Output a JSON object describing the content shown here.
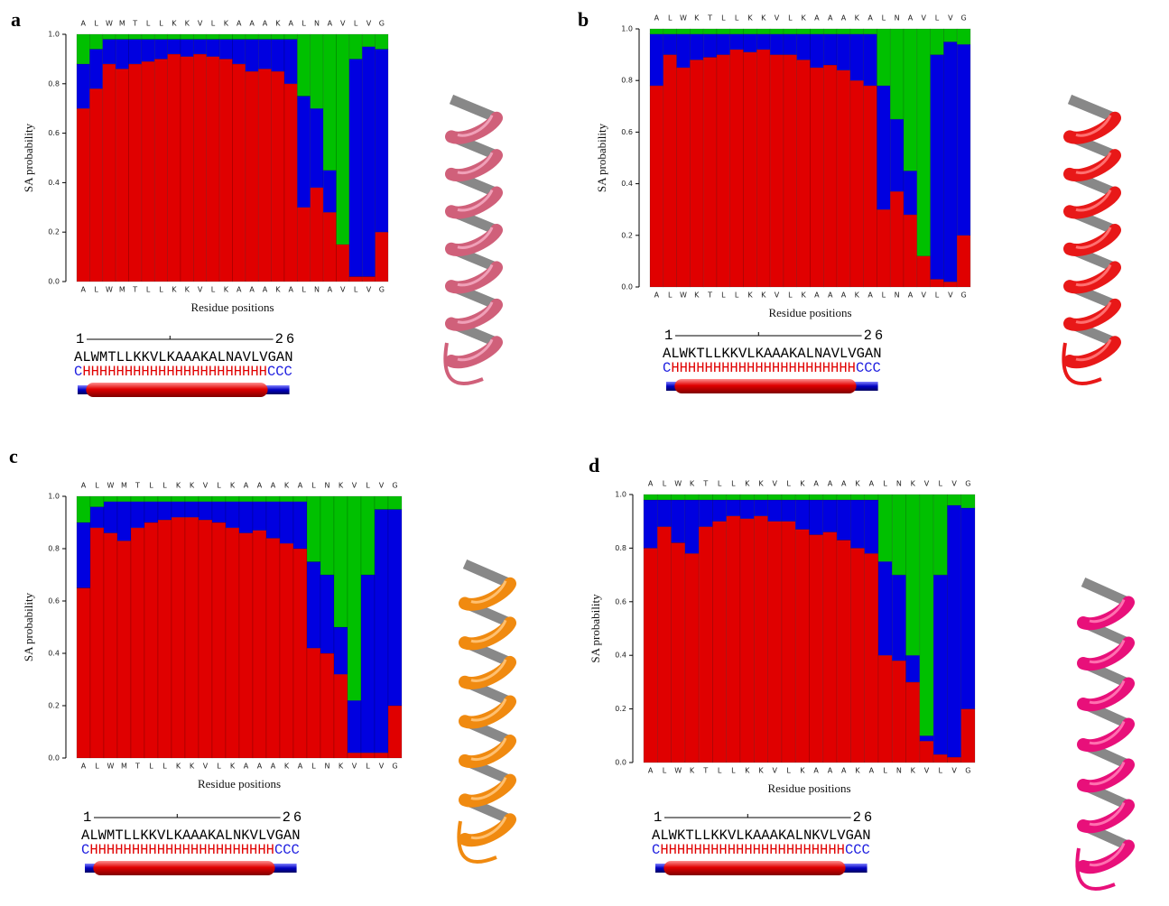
{
  "chart_data": [
    {
      "type": "bar",
      "stacked": true,
      "panel_label": "a",
      "ylabel": "SA probability",
      "xlabel": "Residue positions",
      "categories": [
        "A",
        "L",
        "W",
        "M",
        "T",
        "L",
        "L",
        "K",
        "K",
        "V",
        "L",
        "K",
        "A",
        "A",
        "A",
        "K",
        "A",
        "L",
        "N",
        "A",
        "V",
        "L",
        "V",
        "G"
      ],
      "series": [
        {
          "color": "#e00000",
          "values": [
            0.7,
            0.78,
            0.88,
            0.86,
            0.88,
            0.89,
            0.9,
            0.92,
            0.91,
            0.92,
            0.91,
            0.9,
            0.88,
            0.85,
            0.86,
            0.85,
            0.8,
            0.3,
            0.38,
            0.28,
            0.15,
            0.02,
            0.02,
            0.2
          ]
        },
        {
          "color": "#0000e0",
          "values": [
            0.18,
            0.16,
            0.1,
            0.12,
            0.1,
            0.09,
            0.08,
            0.06,
            0.07,
            0.06,
            0.07,
            0.08,
            0.1,
            0.13,
            0.12,
            0.13,
            0.18,
            0.45,
            0.32,
            0.17,
            0.0,
            0.88,
            0.93,
            0.74
          ]
        },
        {
          "color": "#00c000",
          "values": [
            0.12,
            0.06,
            0.02,
            0.02,
            0.02,
            0.02,
            0.02,
            0.02,
            0.02,
            0.02,
            0.02,
            0.02,
            0.02,
            0.02,
            0.02,
            0.02,
            0.02,
            0.25,
            0.3,
            0.55,
            0.85,
            0.1,
            0.05,
            0.06
          ]
        }
      ],
      "ylim": [
        0,
        1
      ],
      "yticks": [
        {
          "value": 0,
          "label": "0.0"
        },
        {
          "value": 0.2,
          "label": "0.2"
        },
        {
          "value": 0.4,
          "label": "0.4"
        },
        {
          "value": 0.6,
          "label": "0.6"
        },
        {
          "value": 0.8,
          "label": "0.8"
        },
        {
          "value": 1,
          "label": "1.0"
        }
      ],
      "sequence_start": "1",
      "sequence_end": "26",
      "sequence": "ALWMTLLKKVLKAAAKALNAVLVGAN",
      "secondary_structure": [
        "C",
        "HHHHHHHHHHHHHHHHHHHHHH",
        "CCC"
      ]
    },
    {
      "type": "bar",
      "stacked": true,
      "panel_label": "b",
      "ylabel": "SA probability",
      "xlabel": "Residue positions",
      "categories": [
        "A",
        "L",
        "W",
        "K",
        "T",
        "L",
        "L",
        "K",
        "K",
        "V",
        "L",
        "K",
        "A",
        "A",
        "A",
        "K",
        "A",
        "L",
        "N",
        "A",
        "V",
        "L",
        "V",
        "G"
      ],
      "series": [
        {
          "color": "#e00000",
          "values": [
            0.78,
            0.9,
            0.85,
            0.88,
            0.89,
            0.9,
            0.92,
            0.91,
            0.92,
            0.9,
            0.9,
            0.88,
            0.85,
            0.86,
            0.84,
            0.8,
            0.78,
            0.3,
            0.37,
            0.28,
            0.12,
            0.03,
            0.02,
            0.2
          ]
        },
        {
          "color": "#0000e0",
          "values": [
            0.2,
            0.08,
            0.13,
            0.1,
            0.09,
            0.08,
            0.06,
            0.07,
            0.06,
            0.08,
            0.08,
            0.1,
            0.13,
            0.12,
            0.14,
            0.18,
            0.2,
            0.48,
            0.28,
            0.17,
            0.0,
            0.87,
            0.93,
            0.74
          ]
        },
        {
          "color": "#00c000",
          "values": [
            0.02,
            0.02,
            0.02,
            0.02,
            0.02,
            0.02,
            0.02,
            0.02,
            0.02,
            0.02,
            0.02,
            0.02,
            0.02,
            0.02,
            0.02,
            0.02,
            0.02,
            0.22,
            0.35,
            0.55,
            0.88,
            0.1,
            0.05,
            0.06
          ]
        }
      ],
      "ylim": [
        0,
        1
      ],
      "yticks": [
        {
          "value": 0,
          "label": "0.0"
        },
        {
          "value": 0.2,
          "label": "0.2"
        },
        {
          "value": 0.4,
          "label": "0.4"
        },
        {
          "value": 0.6,
          "label": "0.6"
        },
        {
          "value": 0.8,
          "label": "0.8"
        },
        {
          "value": 1,
          "label": "1.0"
        }
      ],
      "sequence_start": "1",
      "sequence_end": "26",
      "sequence": "ALWKTLLKKVLKAAAKALNAVLVGAN",
      "secondary_structure": [
        "C",
        "HHHHHHHHHHHHHHHHHHHHHH",
        "CCC"
      ]
    },
    {
      "type": "bar",
      "stacked": true,
      "panel_label": "c",
      "ylabel": "SA probability",
      "xlabel": "Residue positions",
      "categories": [
        "A",
        "L",
        "W",
        "M",
        "T",
        "L",
        "L",
        "K",
        "K",
        "V",
        "L",
        "K",
        "A",
        "A",
        "A",
        "K",
        "A",
        "L",
        "N",
        "K",
        "V",
        "L",
        "V",
        "G"
      ],
      "series": [
        {
          "color": "#e00000",
          "values": [
            0.65,
            0.88,
            0.86,
            0.83,
            0.88,
            0.9,
            0.91,
            0.92,
            0.92,
            0.91,
            0.9,
            0.88,
            0.86,
            0.87,
            0.84,
            0.82,
            0.8,
            0.42,
            0.4,
            0.32,
            0.02,
            0.02,
            0.02,
            0.2
          ]
        },
        {
          "color": "#0000e0",
          "values": [
            0.25,
            0.08,
            0.12,
            0.15,
            0.1,
            0.08,
            0.07,
            0.06,
            0.06,
            0.07,
            0.08,
            0.1,
            0.12,
            0.11,
            0.14,
            0.16,
            0.18,
            0.33,
            0.3,
            0.18,
            0.2,
            0.68,
            0.93,
            0.75
          ]
        },
        {
          "color": "#00c000",
          "values": [
            0.1,
            0.04,
            0.02,
            0.02,
            0.02,
            0.02,
            0.02,
            0.02,
            0.02,
            0.02,
            0.02,
            0.02,
            0.02,
            0.02,
            0.02,
            0.02,
            0.02,
            0.25,
            0.3,
            0.5,
            0.78,
            0.3,
            0.05,
            0.05
          ]
        }
      ],
      "ylim": [
        0,
        1
      ],
      "yticks": [
        {
          "value": 0,
          "label": "0.0"
        },
        {
          "value": 0.2,
          "label": "0.2"
        },
        {
          "value": 0.4,
          "label": "0.4"
        },
        {
          "value": 0.6,
          "label": "0.6"
        },
        {
          "value": 0.8,
          "label": "0.8"
        },
        {
          "value": 1,
          "label": "1.0"
        }
      ],
      "sequence_start": "1",
      "sequence_end": "26",
      "sequence": "ALWMTLLKKVLKAAAKALNKVLVGAN",
      "secondary_structure": [
        "C",
        "HHHHHHHHHHHHHHHHHHHHHH",
        "CCC"
      ]
    },
    {
      "type": "bar",
      "stacked": true,
      "panel_label": "d",
      "ylabel": "SA probability",
      "xlabel": "Residue positions",
      "categories": [
        "A",
        "L",
        "W",
        "K",
        "T",
        "L",
        "L",
        "K",
        "K",
        "V",
        "L",
        "K",
        "A",
        "A",
        "A",
        "K",
        "A",
        "L",
        "N",
        "K",
        "V",
        "L",
        "V",
        "G"
      ],
      "series": [
        {
          "color": "#e00000",
          "values": [
            0.8,
            0.88,
            0.82,
            0.78,
            0.88,
            0.9,
            0.92,
            0.91,
            0.92,
            0.9,
            0.9,
            0.87,
            0.85,
            0.86,
            0.83,
            0.8,
            0.78,
            0.4,
            0.38,
            0.3,
            0.08,
            0.03,
            0.02,
            0.2
          ]
        },
        {
          "color": "#0000e0",
          "values": [
            0.18,
            0.1,
            0.16,
            0.2,
            0.1,
            0.08,
            0.06,
            0.07,
            0.06,
            0.08,
            0.08,
            0.11,
            0.13,
            0.12,
            0.15,
            0.18,
            0.2,
            0.35,
            0.32,
            0.1,
            0.02,
            0.67,
            0.94,
            0.75
          ]
        },
        {
          "color": "#00c000",
          "values": [
            0.02,
            0.02,
            0.02,
            0.02,
            0.02,
            0.02,
            0.02,
            0.02,
            0.02,
            0.02,
            0.02,
            0.02,
            0.02,
            0.02,
            0.02,
            0.02,
            0.02,
            0.25,
            0.3,
            0.6,
            0.9,
            0.3,
            0.04,
            0.05
          ]
        }
      ],
      "ylim": [
        0,
        1
      ],
      "yticks": [
        {
          "value": 0,
          "label": "0.0"
        },
        {
          "value": 0.2,
          "label": "0.2"
        },
        {
          "value": 0.4,
          "label": "0.4"
        },
        {
          "value": 0.6,
          "label": "0.6"
        },
        {
          "value": 0.8,
          "label": "0.8"
        },
        {
          "value": 1,
          "label": "1.0"
        }
      ],
      "sequence_start": "1",
      "sequence_end": "26",
      "sequence": "ALWKTLLKKVLKAAAKALNKVLVGAN",
      "secondary_structure": [
        "C",
        "HHHHHHHHHHHHHHHHHHHHHH",
        "CCC"
      ]
    }
  ]
}
